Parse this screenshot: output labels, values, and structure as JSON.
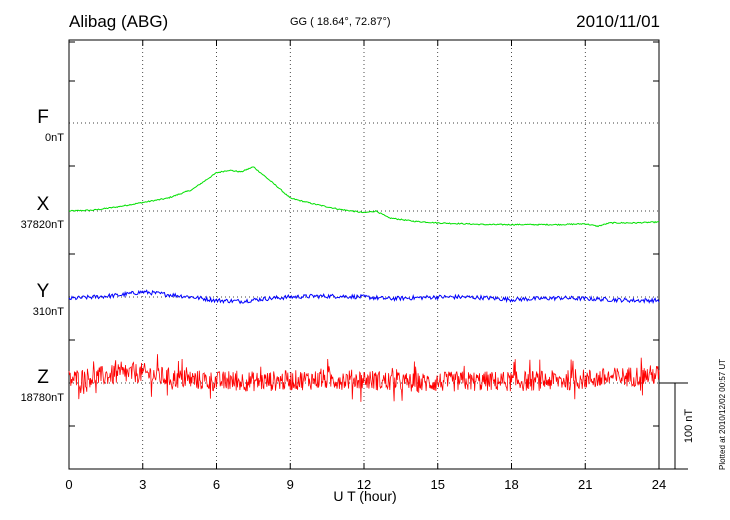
{
  "header": {
    "station": "Alibag (ABG)",
    "coords": "GG ( 18.64°,  72.87°)",
    "date": "2010/11/01"
  },
  "footer": {
    "plotted": "Plotted at 2010/12/02 00:57 UT"
  },
  "scale": {
    "label": "100 nT",
    "nT": 100
  },
  "colors": {
    "F": "#ffa500",
    "X": "#00e000",
    "Y": "#0000ff",
    "Z": "#ff0000",
    "grid": "#000000"
  },
  "chart_data": {
    "type": "line",
    "title": "Alibag (ABG)  GG ( 18.64°,  72.87°)  2010/11/01",
    "xlabel": "U T (hour)",
    "xlim": [
      0,
      24
    ],
    "xticks": [
      0,
      3,
      6,
      9,
      12,
      15,
      18,
      21,
      24
    ],
    "xtick_labels": [
      "0",
      "3",
      "6",
      "9",
      "12",
      "15",
      "18",
      "21",
      "24"
    ],
    "grid": true,
    "components": [
      {
        "name": "F",
        "baseline_label": "0nT",
        "color": "#ffa500"
      },
      {
        "name": "X",
        "baseline_label": "37820nT",
        "color": "#00e000"
      },
      {
        "name": "Y",
        "baseline_label": "310nT",
        "color": "#0000ff"
      },
      {
        "name": "Z",
        "baseline_label": "18780nT",
        "color": "#ff0000"
      }
    ],
    "series": [
      {
        "name": "X",
        "unit": "nT",
        "baseline": 37820,
        "x": [
          0,
          1,
          2,
          3,
          4,
          5,
          5.5,
          6,
          6.5,
          7,
          7.5,
          8,
          8.5,
          9,
          10,
          11,
          12,
          12.5,
          13,
          14,
          15,
          16,
          17,
          18,
          19,
          20,
          21,
          21.5,
          22,
          23,
          24
        ],
        "values": [
          37820,
          37821,
          37825,
          37830,
          37835,
          37845,
          37855,
          37865,
          37868,
          37866,
          37872,
          37860,
          37848,
          37835,
          37828,
          37822,
          37818,
          37820,
          37812,
          37808,
          37806,
          37805,
          37804,
          37804,
          37804,
          37804,
          37805,
          37802,
          37806,
          37806,
          37807
        ]
      },
      {
        "name": "Y",
        "unit": "nT",
        "baseline": 310,
        "x": [
          0,
          1,
          2,
          3,
          4,
          5,
          6,
          7,
          8,
          9,
          10,
          11,
          12,
          13,
          14,
          15,
          16,
          17,
          18,
          19,
          20,
          21,
          22,
          23,
          24
        ],
        "values": [
          308,
          310,
          312,
          316,
          313,
          310,
          306,
          305,
          308,
          310,
          311,
          311,
          310,
          308,
          309,
          310,
          310,
          309,
          307,
          308,
          309,
          308,
          307,
          306,
          306
        ]
      },
      {
        "name": "Z",
        "unit": "nT",
        "baseline": 18780,
        "x": [
          0,
          2,
          3,
          4,
          6,
          8,
          10,
          12,
          14,
          16,
          18,
          20,
          22,
          24
        ],
        "values": [
          18784,
          18790,
          18792,
          18786,
          18782,
          18782,
          18784,
          18784,
          18780,
          18782,
          18782,
          18783,
          18786,
          18790
        ],
        "noise_amplitude": 12
      }
    ]
  }
}
